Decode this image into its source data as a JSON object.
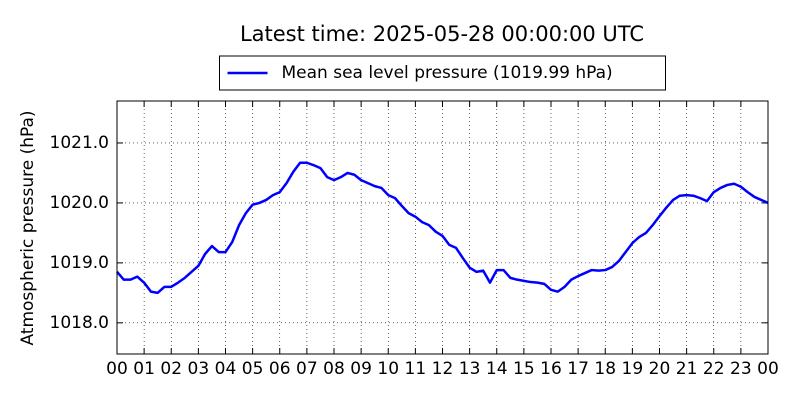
{
  "chart_data": {
    "type": "line",
    "title": "Latest time: 2025-05-28 00:00:00 UTC",
    "y_label": "Atmospheric pressure (hPa)",
    "legend": "upper center",
    "grid": true,
    "xlim": [
      0,
      24
    ],
    "xticks": [
      {
        "value": 0,
        "label": "00"
      },
      {
        "value": 1,
        "label": "01"
      },
      {
        "value": 2,
        "label": "02"
      },
      {
        "value": 3,
        "label": "03"
      },
      {
        "value": 4,
        "label": "04"
      },
      {
        "value": 5,
        "label": "05"
      },
      {
        "value": 6,
        "label": "06"
      },
      {
        "value": 7,
        "label": "07"
      },
      {
        "value": 8,
        "label": "08"
      },
      {
        "value": 9,
        "label": "09"
      },
      {
        "value": 10,
        "label": "10"
      },
      {
        "value": 11,
        "label": "11"
      },
      {
        "value": 12,
        "label": "12"
      },
      {
        "value": 13,
        "label": "13"
      },
      {
        "value": 14,
        "label": "14"
      },
      {
        "value": 15,
        "label": "15"
      },
      {
        "value": 16,
        "label": "16"
      },
      {
        "value": 17,
        "label": "17"
      },
      {
        "value": 18,
        "label": "18"
      },
      {
        "value": 19,
        "label": "19"
      },
      {
        "value": 20,
        "label": "20"
      },
      {
        "value": 21,
        "label": "21"
      },
      {
        "value": 22,
        "label": "22"
      },
      {
        "value": 23,
        "label": "23"
      },
      {
        "value": 24,
        "label": "00"
      }
    ],
    "ylim": [
      1017.48,
      1021.7
    ],
    "yticks": [
      {
        "value": 1018,
        "label": "1018.0"
      },
      {
        "value": 1019,
        "label": "1019.0"
      },
      {
        "value": 1020,
        "label": "1020.0"
      },
      {
        "value": 1021,
        "label": "1021.0"
      }
    ],
    "x": [
      0,
      0.25,
      0.5,
      0.75,
      1,
      1.25,
      1.5,
      1.75,
      2,
      2.25,
      2.5,
      2.75,
      3,
      3.25,
      3.5,
      3.75,
      4,
      4.25,
      4.5,
      4.75,
      5,
      5.25,
      5.5,
      5.75,
      6,
      6.25,
      6.5,
      6.75,
      7,
      7.25,
      7.5,
      7.75,
      8,
      8.25,
      8.5,
      8.75,
      9,
      9.25,
      9.5,
      9.75,
      10,
      10.25,
      10.5,
      10.75,
      11,
      11.25,
      11.5,
      11.75,
      12,
      12.25,
      12.5,
      12.75,
      13,
      13.25,
      13.5,
      13.75,
      14,
      14.25,
      14.5,
      14.75,
      15,
      15.25,
      15.5,
      15.75,
      16,
      16.25,
      16.5,
      16.75,
      17,
      17.25,
      17.5,
      17.75,
      18,
      18.25,
      18.5,
      18.75,
      19,
      19.25,
      19.5,
      19.75,
      20,
      20.25,
      20.5,
      20.75,
      21,
      21.25,
      21.5,
      21.75,
      22,
      22.25,
      22.5,
      22.75,
      23,
      23.25,
      23.5,
      23.75,
      24
    ],
    "series": [
      {
        "name": "Mean sea level pressure (1019.99 hPa)",
        "color": "#0000ff",
        "values": [
          1018.85,
          1018.72,
          1018.72,
          1018.77,
          1018.67,
          1018.52,
          1018.5,
          1018.6,
          1018.6,
          1018.67,
          1018.75,
          1018.85,
          1018.95,
          1019.15,
          1019.28,
          1019.18,
          1019.18,
          1019.35,
          1019.63,
          1019.83,
          1019.97,
          1020.0,
          1020.05,
          1020.13,
          1020.18,
          1020.33,
          1020.52,
          1020.67,
          1020.67,
          1020.63,
          1020.58,
          1020.43,
          1020.38,
          1020.43,
          1020.5,
          1020.47,
          1020.38,
          1020.33,
          1020.28,
          1020.25,
          1020.13,
          1020.08,
          1019.95,
          1019.83,
          1019.77,
          1019.68,
          1019.63,
          1019.52,
          1019.45,
          1019.3,
          1019.25,
          1019.08,
          1018.92,
          1018.85,
          1018.87,
          1018.67,
          1018.88,
          1018.88,
          1018.75,
          1018.72,
          1018.7,
          1018.68,
          1018.67,
          1018.65,
          1018.55,
          1018.52,
          1018.6,
          1018.72,
          1018.78,
          1018.83,
          1018.88,
          1018.87,
          1018.88,
          1018.93,
          1019.03,
          1019.18,
          1019.33,
          1019.43,
          1019.5,
          1019.63,
          1019.78,
          1019.92,
          1020.05,
          1020.12,
          1020.13,
          1020.12,
          1020.08,
          1020.03,
          1020.18,
          1020.25,
          1020.3,
          1020.32,
          1020.27,
          1020.18,
          1020.1,
          1020.05,
          1020.0
        ]
      }
    ]
  }
}
